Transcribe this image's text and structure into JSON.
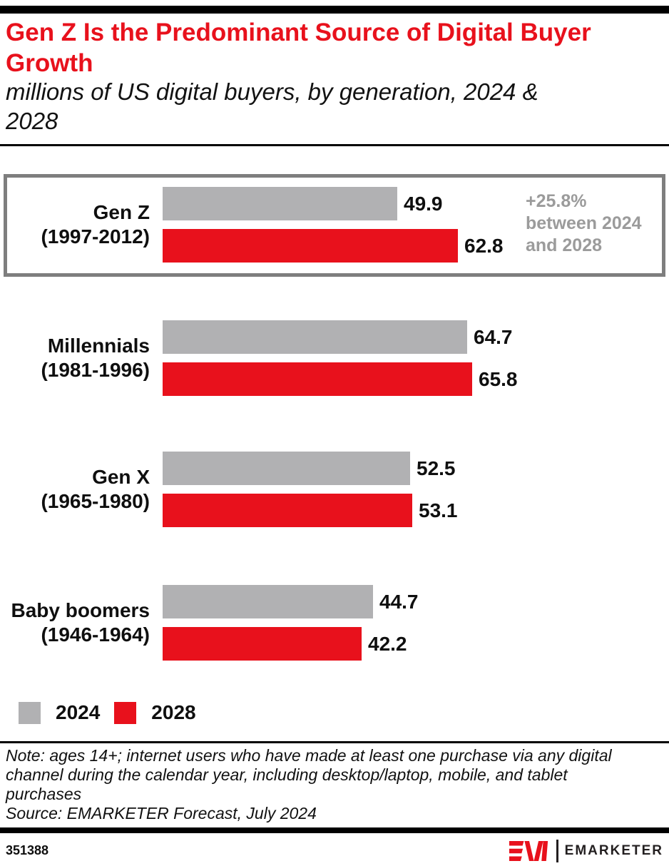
{
  "header": {
    "title_lines": [
      "Gen Z Is the Predominant Source of Digital Buyer",
      "Growth"
    ],
    "subtitle_lines": [
      "millions of US digital buyers, by generation, 2024 &",
      "2028"
    ]
  },
  "chart_data": {
    "type": "bar",
    "orientation": "horizontal",
    "title": "Gen Z Is the Predominant Source of Digital Buyer Growth",
    "subtitle": "millions of US digital buyers, by generation, 2024 & 2028",
    "unit": "millions of US digital buyers",
    "categories": [
      [
        "Gen Z",
        "(1997-2012)"
      ],
      [
        "Millennials",
        "(1981-1996)"
      ],
      [
        "Gen X",
        "(1965-1980)"
      ],
      [
        "Baby boomers",
        "(1946-1964)"
      ]
    ],
    "series": [
      {
        "name": "2024",
        "color": "#b1b1b3",
        "values": [
          49.9,
          64.7,
          52.5,
          44.7
        ]
      },
      {
        "name": "2028",
        "color": "#e8111c",
        "values": [
          62.8,
          65.8,
          53.1,
          42.2
        ]
      }
    ],
    "xlim": [
      0,
      70
    ],
    "grid": false,
    "legend_position": "bottom-left",
    "annotation": {
      "target": "Gen Z",
      "lines": [
        "+25.8%",
        "between 2024",
        "and 2028"
      ]
    }
  },
  "legend": {
    "items": [
      {
        "label": "2024",
        "color": "#b1b1b3"
      },
      {
        "label": "2028",
        "color": "#e8111c"
      }
    ]
  },
  "footnote": {
    "note_lines": [
      "Note: ages 14+; internet users who have made at least one purchase via any digital",
      "channel during the calendar year, including desktop/laptop, mobile, and tablet",
      "purchases"
    ],
    "source": "Source: EMARKETER Forecast, July 2024"
  },
  "footer": {
    "chart_id": "351388",
    "brand": "EMARKETER"
  },
  "colors": {
    "accent_red": "#e8111c",
    "bar_gray": "#b1b1b3",
    "annotation_gray": "#9b9b9b",
    "highlight_border": "#7e7e7e",
    "bar_black": "#000000"
  }
}
